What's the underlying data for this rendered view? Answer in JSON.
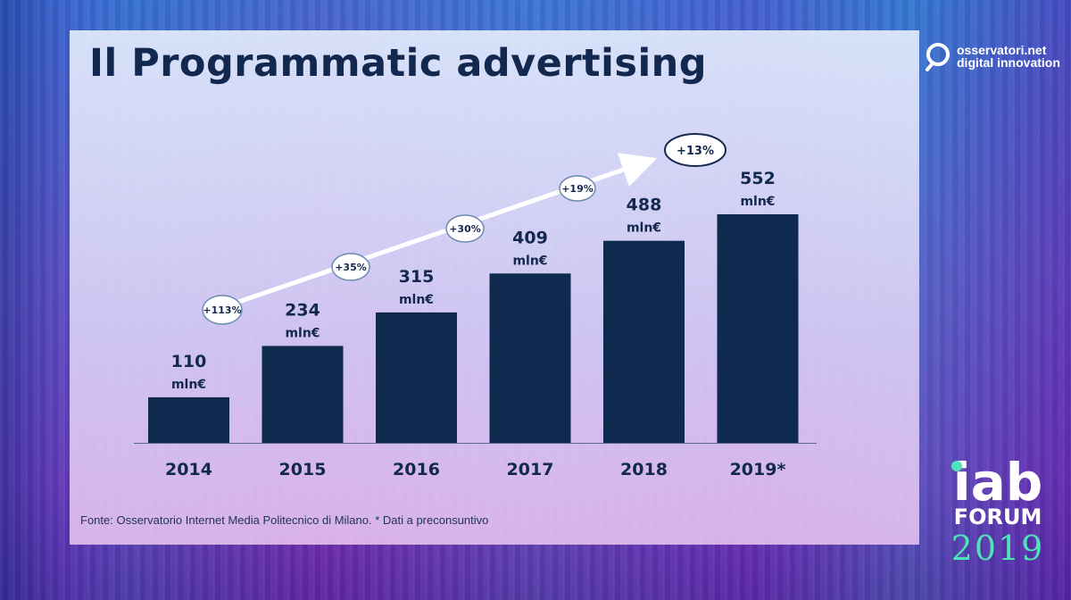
{
  "slide": {
    "title": "Il Programmatic advertising",
    "source": "Fonte: Osservatorio Internet Media Politecnico di Milano. * Dati a preconsuntivo"
  },
  "brand": {
    "line1": "osservatori.net",
    "line2": "digital innovation",
    "icon": "magnifier-logo-icon"
  },
  "event_logo": {
    "word": "iab",
    "forum": "FORUM",
    "year": "2019",
    "accent_color": "#4fe3b8"
  },
  "colors": {
    "bar": "#0f2a4f",
    "text": "#13284f"
  },
  "chart_data": {
    "type": "bar",
    "title": "",
    "categories": [
      "2014",
      "2015",
      "2016",
      "2017",
      "2018",
      "2019*"
    ],
    "values": [
      110,
      234,
      315,
      409,
      488,
      552
    ],
    "value_labels": [
      "110",
      "234",
      "315",
      "409",
      "488",
      "552"
    ],
    "unit": "mln€",
    "ylim": [
      0,
      552
    ],
    "grid": false,
    "legend": "none",
    "growth": [
      "+113%",
      "+35%",
      "+30%",
      "+19%",
      "+13%"
    ]
  }
}
